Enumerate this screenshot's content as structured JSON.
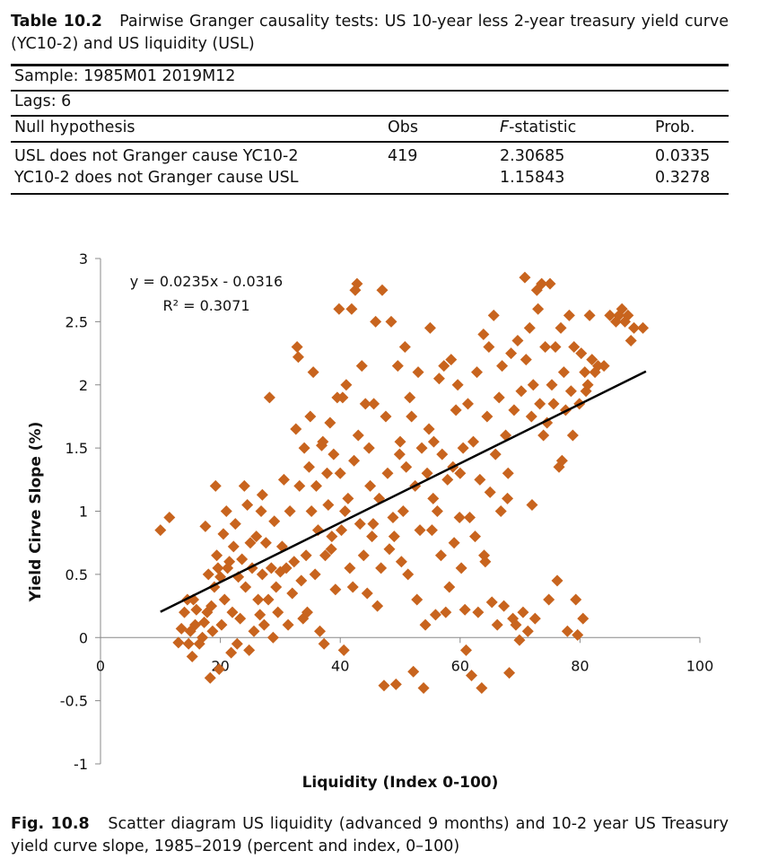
{
  "table": {
    "label": "Table 10.2",
    "caption": "Pairwise Granger causality tests: US 10-year less 2-year treasury yield curve (YC10-2) and US liquidity (USL)",
    "sample": "Sample: 1985M01 2019M12",
    "lags": "Lags: 6",
    "headers": {
      "hypothesis": "Null hypothesis",
      "obs": "Obs",
      "f_prefix": "F",
      "f_suffix": "-statistic",
      "prob": "Prob."
    },
    "rows": [
      {
        "hypothesis": "USL does not Granger cause YC10-2",
        "obs": "419",
        "f": "2.30685",
        "prob": "0.0335"
      },
      {
        "hypothesis": "YC10-2 does not Granger cause USL",
        "obs": "",
        "f": "1.15843",
        "prob": "0.3278"
      }
    ]
  },
  "figure": {
    "label": "Fig. 10.8",
    "caption": "Scatter diagram US liquidity (advanced 9 months) and 10-2 year US Treasury yield curve slope, 1985–2019 (percent and index, 0–100)"
  },
  "chart_data": {
    "type": "scatter",
    "xlabel": "Liquidity (Index 0-100)",
    "ylabel": "Yield Cirve Slope (%)",
    "xlim": [
      0,
      100
    ],
    "ylim": [
      -1,
      3
    ],
    "x_ticks": [
      "0",
      "20",
      "40",
      "60",
      "80",
      "100"
    ],
    "y_ticks": [
      "3",
      "2.5",
      "2",
      "1.5",
      "1",
      "0.5",
      "0",
      "-0.5",
      "-1"
    ],
    "grid": false,
    "marker_color": "#c8641e",
    "trendline": {
      "slope": 0.0235,
      "intercept": -0.0316,
      "x_range": [
        10,
        91
      ],
      "color": "#000000"
    },
    "equation": "y = 0.0235x - 0.0316",
    "r_squared": "R² = 0.3071",
    "points": [
      [
        10,
        0.85
      ],
      [
        11.5,
        0.95
      ],
      [
        13,
        -0.04
      ],
      [
        13.5,
        0.07
      ],
      [
        14,
        0.2
      ],
      [
        14.5,
        0.3
      ],
      [
        14.7,
        -0.05
      ],
      [
        15,
        0.05
      ],
      [
        15.3,
        -0.15
      ],
      [
        15.5,
        0.3
      ],
      [
        15.8,
        0.1
      ],
      [
        16,
        0.22
      ],
      [
        16.5,
        -0.05
      ],
      [
        17,
        0.0
      ],
      [
        17.3,
        0.12
      ],
      [
        17.5,
        0.88
      ],
      [
        17.8,
        0.2
      ],
      [
        18,
        0.5
      ],
      [
        18.3,
        -0.32
      ],
      [
        18.5,
        0.25
      ],
      [
        18.7,
        0.05
      ],
      [
        19,
        0.4
      ],
      [
        19.2,
        1.2
      ],
      [
        19.4,
        0.65
      ],
      [
        19.6,
        0.55
      ],
      [
        19.8,
        -0.25
      ],
      [
        20,
        0.48
      ],
      [
        20.2,
        0.1
      ],
      [
        20.5,
        0.82
      ],
      [
        20.7,
        0.3
      ],
      [
        21,
        1.0
      ],
      [
        21.2,
        0.55
      ],
      [
        21.5,
        0.6
      ],
      [
        21.8,
        -0.12
      ],
      [
        22,
        0.2
      ],
      [
        22.2,
        0.72
      ],
      [
        22.5,
        0.9
      ],
      [
        22.8,
        -0.05
      ],
      [
        23,
        0.48
      ],
      [
        23.3,
        0.15
      ],
      [
        23.6,
        0.62
      ],
      [
        24,
        1.2
      ],
      [
        24.2,
        0.4
      ],
      [
        24.5,
        1.05
      ],
      [
        24.8,
        -0.1
      ],
      [
        25,
        0.75
      ],
      [
        25.3,
        0.55
      ],
      [
        25.6,
        0.05
      ],
      [
        26,
        0.8
      ],
      [
        26.3,
        0.3
      ],
      [
        26.6,
        0.18
      ],
      [
        26.8,
        1.0
      ],
      [
        27,
        0.5
      ],
      [
        27.3,
        0.1
      ],
      [
        27.6,
        0.75
      ],
      [
        28,
        0.3
      ],
      [
        28.2,
        1.9
      ],
      [
        28.5,
        0.55
      ],
      [
        28.8,
        0.0
      ],
      [
        29,
        0.92
      ],
      [
        29.3,
        0.4
      ],
      [
        29.6,
        0.2
      ],
      [
        30,
        0.52
      ],
      [
        30.3,
        0.72
      ],
      [
        30.6,
        1.25
      ],
      [
        31,
        0.55
      ],
      [
        31.3,
        0.1
      ],
      [
        31.6,
        1.0
      ],
      [
        32,
        0.35
      ],
      [
        32.3,
        0.6
      ],
      [
        32.6,
        1.65
      ],
      [
        32.8,
        2.3
      ],
      [
        33,
        2.22
      ],
      [
        33.2,
        1.2
      ],
      [
        33.5,
        0.45
      ],
      [
        33.8,
        0.15
      ],
      [
        34,
        1.5
      ],
      [
        34.3,
        0.65
      ],
      [
        34.5,
        0.2
      ],
      [
        34.8,
        1.35
      ],
      [
        35,
        1.75
      ],
      [
        35.2,
        1.0
      ],
      [
        35.5,
        2.1
      ],
      [
        35.8,
        0.5
      ],
      [
        36,
        1.2
      ],
      [
        36.3,
        0.85
      ],
      [
        36.6,
        0.05
      ],
      [
        36.9,
        1.52
      ],
      [
        37.1,
        1.55
      ],
      [
        37.3,
        -0.05
      ],
      [
        37.5,
        0.65
      ],
      [
        37.8,
        1.3
      ],
      [
        38,
        1.05
      ],
      [
        38.3,
        1.7
      ],
      [
        38.6,
        0.8
      ],
      [
        38.9,
        1.45
      ],
      [
        39.2,
        0.38
      ],
      [
        39.5,
        1.9
      ],
      [
        39.8,
        2.6
      ],
      [
        40,
        1.3
      ],
      [
        40.2,
        0.85
      ],
      [
        40.4,
        1.9
      ],
      [
        40.6,
        -0.1
      ],
      [
        40.8,
        1.0
      ],
      [
        41,
        2.0
      ],
      [
        41.3,
        1.1
      ],
      [
        41.6,
        0.55
      ],
      [
        41.9,
        2.6
      ],
      [
        42.1,
        0.4
      ],
      [
        42.3,
        1.4
      ],
      [
        42.5,
        2.75
      ],
      [
        42.8,
        2.8
      ],
      [
        43,
        1.6
      ],
      [
        43.3,
        0.9
      ],
      [
        43.6,
        2.15
      ],
      [
        43.9,
        0.65
      ],
      [
        44.2,
        1.85
      ],
      [
        44.5,
        0.35
      ],
      [
        44.8,
        1.5
      ],
      [
        45,
        1.2
      ],
      [
        45.3,
        0.8
      ],
      [
        45.6,
        1.85
      ],
      [
        45.9,
        2.5
      ],
      [
        46.2,
        0.25
      ],
      [
        46.5,
        1.1
      ],
      [
        46.8,
        0.55
      ],
      [
        47,
        2.75
      ],
      [
        47.3,
        -0.38
      ],
      [
        47.6,
        1.75
      ],
      [
        47.9,
        1.3
      ],
      [
        48.2,
        0.7
      ],
      [
        48.5,
        2.5
      ],
      [
        48.8,
        0.95
      ],
      [
        49,
        0.8
      ],
      [
        49.3,
        -0.37
      ],
      [
        49.6,
        2.15
      ],
      [
        49.9,
        1.45
      ],
      [
        50.2,
        0.6
      ],
      [
        50.5,
        1.0
      ],
      [
        50.8,
        2.3
      ],
      [
        51,
        1.35
      ],
      [
        51.3,
        0.5
      ],
      [
        51.6,
        1.9
      ],
      [
        51.9,
        1.75
      ],
      [
        52.2,
        -0.27
      ],
      [
        52.5,
        1.2
      ],
      [
        52.8,
        0.3
      ],
      [
        53,
        2.1
      ],
      [
        53.3,
        0.85
      ],
      [
        53.6,
        1.5
      ],
      [
        53.9,
        -0.4
      ],
      [
        54.2,
        0.1
      ],
      [
        54.5,
        1.3
      ],
      [
        54.8,
        1.65
      ],
      [
        55,
        2.45
      ],
      [
        55.3,
        0.85
      ],
      [
        55.6,
        1.55
      ],
      [
        55.9,
        0.18
      ],
      [
        56.2,
        1.0
      ],
      [
        56.5,
        2.05
      ],
      [
        56.8,
        0.65
      ],
      [
        57,
        1.45
      ],
      [
        57.3,
        2.15
      ],
      [
        57.6,
        0.2
      ],
      [
        57.9,
        1.25
      ],
      [
        58.2,
        0.4
      ],
      [
        58.5,
        2.2
      ],
      [
        58.8,
        1.35
      ],
      [
        59,
        0.75
      ],
      [
        59.3,
        1.8
      ],
      [
        59.6,
        2.0
      ],
      [
        59.9,
        0.95
      ],
      [
        60.2,
        0.55
      ],
      [
        60.5,
        1.5
      ],
      [
        60.8,
        0.22
      ],
      [
        61,
        -0.1
      ],
      [
        61.3,
        1.85
      ],
      [
        61.6,
        0.95
      ],
      [
        61.9,
        -0.3
      ],
      [
        62.2,
        1.55
      ],
      [
        62.5,
        0.8
      ],
      [
        62.8,
        2.1
      ],
      [
        63,
        0.2
      ],
      [
        63.3,
        1.25
      ],
      [
        63.6,
        -0.4
      ],
      [
        63.9,
        2.4
      ],
      [
        64.2,
        0.6
      ],
      [
        64.5,
        1.75
      ],
      [
        64.8,
        2.3
      ],
      [
        65,
        1.15
      ],
      [
        65.3,
        0.28
      ],
      [
        65.6,
        2.55
      ],
      [
        65.9,
        1.45
      ],
      [
        66.2,
        0.1
      ],
      [
        66.5,
        1.9
      ],
      [
        66.8,
        1.0
      ],
      [
        67,
        2.15
      ],
      [
        67.3,
        0.25
      ],
      [
        67.6,
        1.6
      ],
      [
        67.9,
        1.1
      ],
      [
        68.2,
        -0.28
      ],
      [
        68.5,
        2.25
      ],
      [
        68.8,
        0.15
      ],
      [
        69,
        1.8
      ],
      [
        69.3,
        0.1
      ],
      [
        69.6,
        2.35
      ],
      [
        69.9,
        -0.02
      ],
      [
        70.2,
        1.95
      ],
      [
        70.5,
        0.2
      ],
      [
        70.8,
        2.85
      ],
      [
        71,
        2.2
      ],
      [
        71.3,
        0.05
      ],
      [
        71.6,
        2.45
      ],
      [
        71.9,
        1.75
      ],
      [
        72.2,
        2.0
      ],
      [
        72.5,
        0.15
      ],
      [
        72.8,
        2.75
      ],
      [
        73,
        2.6
      ],
      [
        73.3,
        1.85
      ],
      [
        73.6,
        2.8
      ],
      [
        73.9,
        1.6
      ],
      [
        74.2,
        2.3
      ],
      [
        74.5,
        1.7
      ],
      [
        74.8,
        0.3
      ],
      [
        75,
        2.8
      ],
      [
        75.3,
        2.0
      ],
      [
        75.6,
        1.85
      ],
      [
        75.9,
        2.3
      ],
      [
        76.2,
        0.45
      ],
      [
        76.5,
        1.35
      ],
      [
        76.8,
        2.45
      ],
      [
        77,
        1.4
      ],
      [
        77.3,
        2.1
      ],
      [
        77.6,
        1.8
      ],
      [
        77.9,
        0.05
      ],
      [
        78.2,
        2.55
      ],
      [
        78.5,
        1.95
      ],
      [
        78.8,
        1.6
      ],
      [
        79,
        2.3
      ],
      [
        79.3,
        0.3
      ],
      [
        79.6,
        0.02
      ],
      [
        79.9,
        1.85
      ],
      [
        80.2,
        2.25
      ],
      [
        80.5,
        0.15
      ],
      [
        80.8,
        2.1
      ],
      [
        81,
        1.95
      ],
      [
        81.3,
        2.0
      ],
      [
        81.6,
        2.55
      ],
      [
        82,
        2.2
      ],
      [
        82.5,
        2.1
      ],
      [
        83,
        2.15
      ],
      [
        84,
        2.15
      ],
      [
        85,
        2.55
      ],
      [
        86,
        2.5
      ],
      [
        86.5,
        2.55
      ],
      [
        87,
        2.6
      ],
      [
        87.5,
        2.5
      ],
      [
        88,
        2.55
      ],
      [
        88.5,
        2.35
      ],
      [
        89,
        2.45
      ],
      [
        90.5,
        2.45
      ],
      [
        27,
        1.13
      ],
      [
        38.5,
        0.7
      ],
      [
        45.5,
        0.9
      ],
      [
        50,
        1.55
      ],
      [
        55.5,
        1.1
      ],
      [
        60,
        1.3
      ],
      [
        64,
        0.65
      ],
      [
        68,
        1.3
      ],
      [
        72,
        1.05
      ]
    ]
  }
}
